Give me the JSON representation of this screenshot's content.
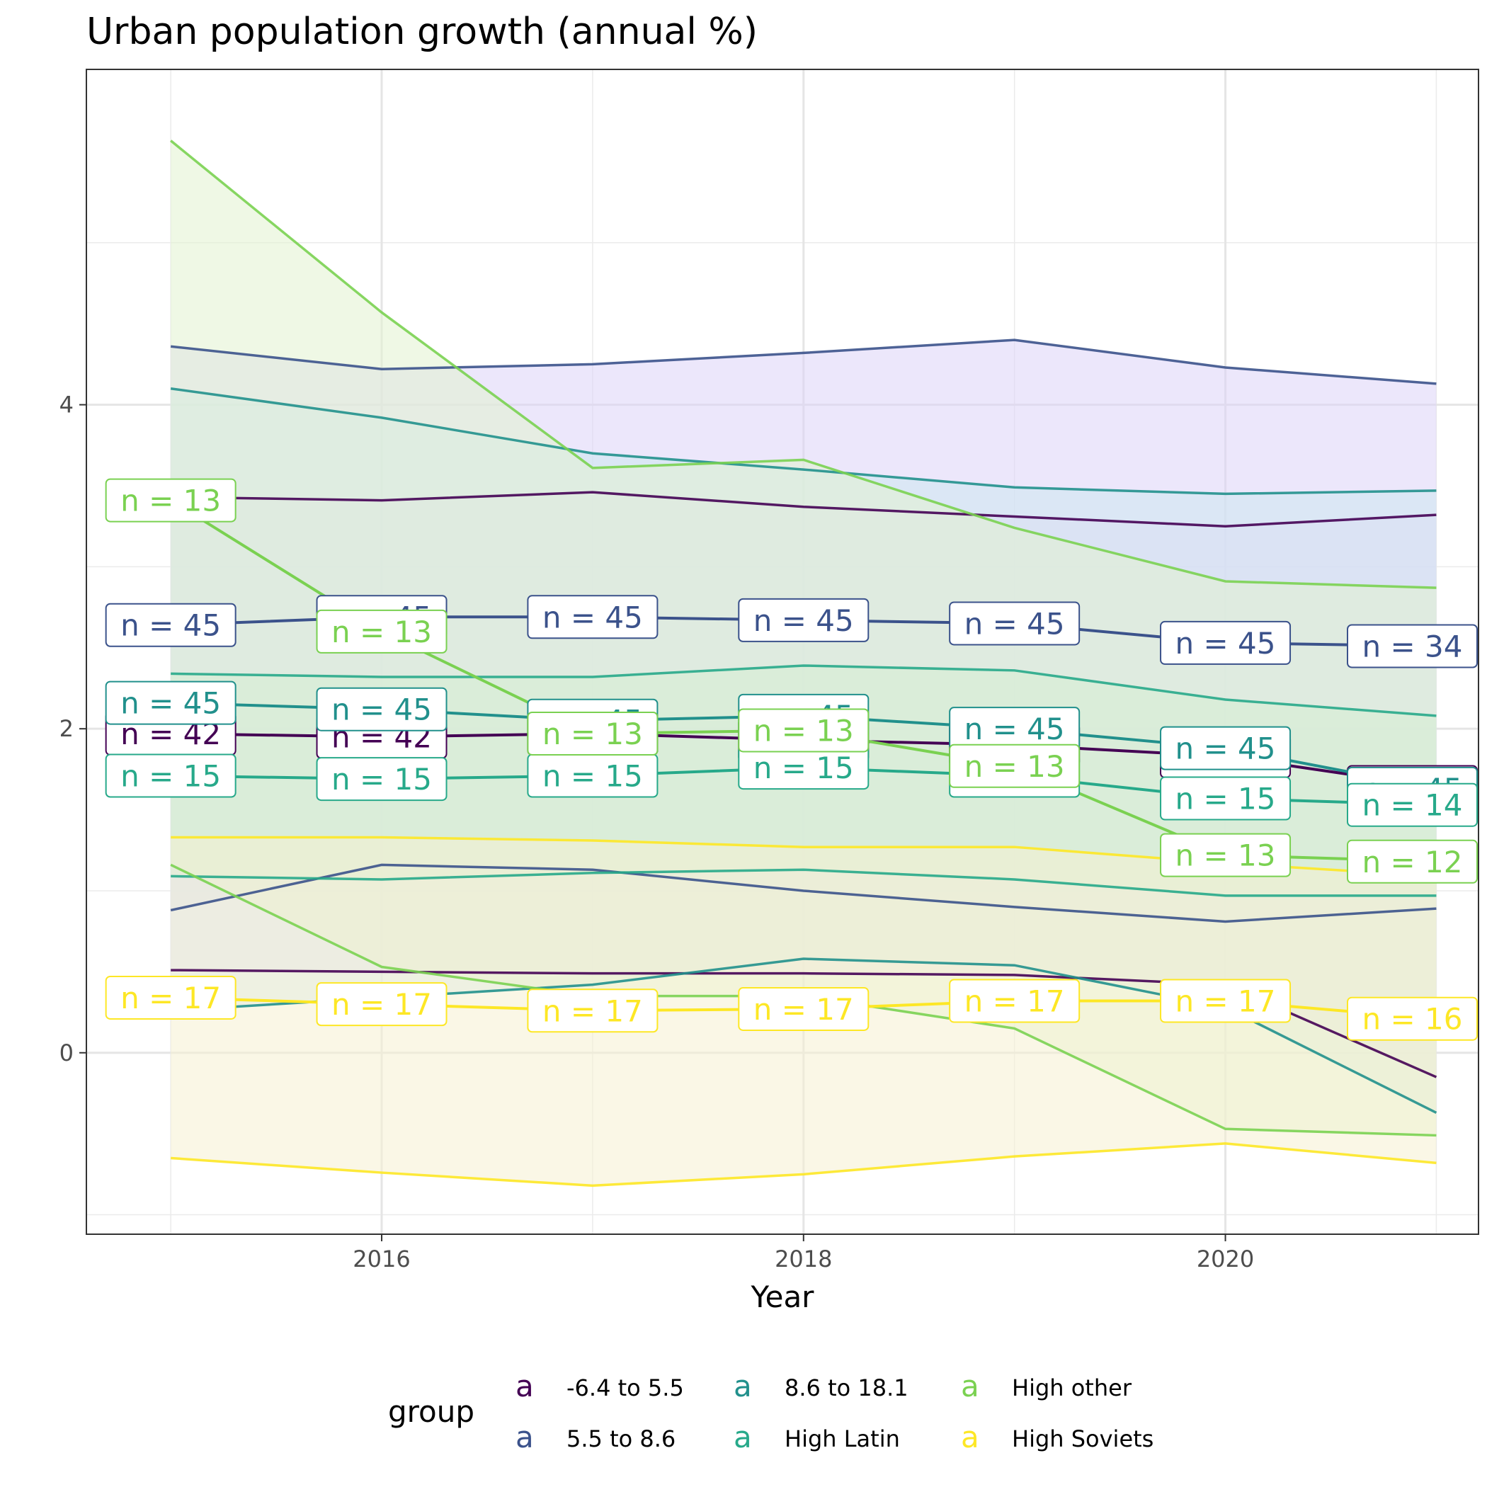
{
  "chart_data": {
    "type": "line",
    "title": "Urban population growth (annual %)",
    "xlabel": "Year",
    "ylabel": "",
    "xlim": [
      2014.6,
      2021.2
    ],
    "ylim": [
      -1.12,
      6.07
    ],
    "x_ticks": [
      2016,
      2018,
      2020
    ],
    "y_ticks": [
      0,
      2,
      4
    ],
    "grid": true,
    "legend_title": "group",
    "legend_position": "bottom",
    "x": [
      2015,
      2016,
      2017,
      2018,
      2019,
      2020,
      2021
    ],
    "series": [
      {
        "name": "-6.4 to 5.5",
        "color": "#440154",
        "band_fill": "#f8d7f8",
        "mean": [
          1.97,
          1.95,
          1.97,
          1.93,
          1.9,
          1.83,
          1.64
        ],
        "upper": [
          3.43,
          3.41,
          3.46,
          3.37,
          3.31,
          3.25,
          3.32
        ],
        "lower": [
          0.51,
          0.5,
          0.49,
          0.49,
          0.48,
          0.42,
          -0.15
        ],
        "n": [
          42,
          42,
          42,
          42,
          42,
          42,
          42
        ]
      },
      {
        "name": "5.5 to 8.6",
        "color": "#3b528b",
        "band_fill": "#dcd4f7",
        "mean": [
          2.64,
          2.69,
          2.69,
          2.67,
          2.65,
          2.53,
          2.51
        ],
        "upper": [
          4.36,
          4.22,
          4.25,
          4.32,
          4.4,
          4.23,
          4.13
        ],
        "lower": [
          0.88,
          1.16,
          1.13,
          1.0,
          0.9,
          0.81,
          0.89
        ],
        "n": [
          45,
          45,
          45,
          45,
          45,
          45,
          34
        ]
      },
      {
        "name": "8.6 to 18.1",
        "color": "#21908c",
        "band_fill": "#cde8f0",
        "mean": [
          2.16,
          2.12,
          2.05,
          2.08,
          2.0,
          1.88,
          1.63
        ],
        "upper": [
          4.1,
          3.92,
          3.7,
          3.6,
          3.49,
          3.45,
          3.47
        ],
        "lower": [
          0.26,
          0.34,
          0.42,
          0.58,
          0.54,
          0.28,
          -0.37
        ],
        "n": [
          45,
          45,
          45,
          45,
          45,
          45,
          45
        ]
      },
      {
        "name": "High Latin",
        "color": "#27a98a",
        "band_fill": "#c7ead8",
        "mean": [
          1.71,
          1.69,
          1.71,
          1.76,
          1.71,
          1.57,
          1.53
        ],
        "upper": [
          2.34,
          2.32,
          2.32,
          2.39,
          2.36,
          2.18,
          2.08
        ],
        "lower": [
          1.09,
          1.07,
          1.11,
          1.13,
          1.07,
          0.97,
          0.97
        ],
        "n": [
          15,
          15,
          15,
          15,
          15,
          15,
          14
        ]
      },
      {
        "name": "High other",
        "color": "#7ad151",
        "band_fill": "#e2f2cf",
        "mean": [
          3.41,
          2.6,
          1.97,
          1.99,
          1.77,
          1.22,
          1.18
        ],
        "upper": [
          5.63,
          4.57,
          3.61,
          3.66,
          3.24,
          2.91,
          2.87
        ],
        "lower": [
          1.16,
          0.53,
          0.35,
          0.35,
          0.15,
          -0.47,
          -0.51
        ],
        "n": [
          13,
          13,
          13,
          13,
          13,
          13,
          12
        ]
      },
      {
        "name": "High Soviets",
        "color": "#fde725",
        "band_fill": "#f5f0d2",
        "mean": [
          0.34,
          0.3,
          0.26,
          0.27,
          0.32,
          0.32,
          0.21
        ],
        "upper": [
          1.33,
          1.33,
          1.31,
          1.27,
          1.27,
          1.17,
          1.09
        ],
        "lower": [
          -0.65,
          -0.74,
          -0.82,
          -0.75,
          -0.64,
          -0.56,
          -0.68
        ],
        "n": [
          17,
          17,
          17,
          17,
          17,
          17,
          16
        ]
      }
    ]
  }
}
